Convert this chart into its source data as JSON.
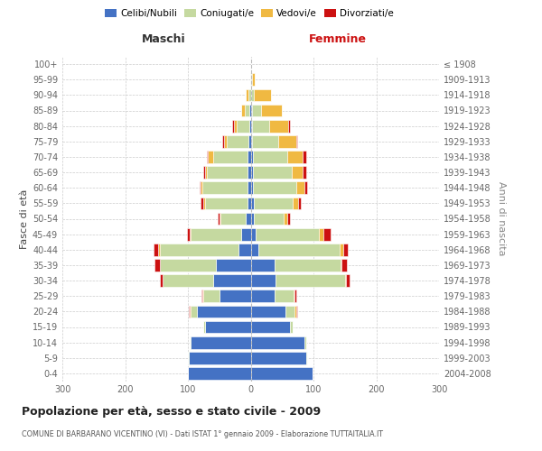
{
  "age_groups": [
    "0-4",
    "5-9",
    "10-14",
    "15-19",
    "20-24",
    "25-29",
    "30-34",
    "35-39",
    "40-44",
    "45-49",
    "50-54",
    "55-59",
    "60-64",
    "65-69",
    "70-74",
    "75-79",
    "80-84",
    "85-89",
    "90-94",
    "95-99",
    "100+"
  ],
  "birth_years": [
    "2004-2008",
    "1999-2003",
    "1994-1998",
    "1989-1993",
    "1984-1988",
    "1979-1983",
    "1974-1978",
    "1969-1973",
    "1964-1968",
    "1959-1963",
    "1954-1958",
    "1949-1953",
    "1944-1948",
    "1939-1943",
    "1934-1938",
    "1929-1933",
    "1924-1928",
    "1919-1923",
    "1914-1918",
    "1909-1913",
    "≤ 1908"
  ],
  "maschi": {
    "celibi": [
      100,
      98,
      95,
      72,
      85,
      50,
      60,
      55,
      20,
      15,
      8,
      5,
      5,
      5,
      5,
      3,
      2,
      2,
      0,
      0,
      0
    ],
    "coniugati": [
      0,
      2,
      2,
      3,
      10,
      25,
      80,
      90,
      125,
      80,
      40,
      68,
      72,
      65,
      55,
      35,
      20,
      8,
      3,
      1,
      0
    ],
    "vedovi": [
      0,
      0,
      0,
      0,
      2,
      2,
      0,
      0,
      2,
      2,
      2,
      2,
      3,
      3,
      8,
      5,
      5,
      5,
      5,
      0,
      0
    ],
    "divorziati": [
      0,
      0,
      0,
      0,
      2,
      2,
      5,
      8,
      8,
      5,
      2,
      5,
      2,
      2,
      2,
      2,
      2,
      0,
      0,
      0,
      0
    ]
  },
  "femmine": {
    "nubili": [
      98,
      88,
      85,
      62,
      55,
      38,
      40,
      38,
      12,
      8,
      5,
      5,
      3,
      3,
      3,
      2,
      2,
      2,
      0,
      0,
      0
    ],
    "coniugate": [
      0,
      2,
      3,
      5,
      15,
      30,
      110,
      105,
      130,
      100,
      48,
      62,
      70,
      62,
      55,
      42,
      28,
      15,
      5,
      2,
      0
    ],
    "vedove": [
      0,
      0,
      0,
      0,
      2,
      2,
      2,
      2,
      5,
      8,
      5,
      8,
      12,
      18,
      25,
      28,
      30,
      32,
      28,
      5,
      0
    ],
    "divorziate": [
      0,
      0,
      0,
      0,
      2,
      2,
      5,
      8,
      8,
      12,
      5,
      5,
      5,
      5,
      5,
      2,
      2,
      0,
      0,
      0,
      0
    ]
  },
  "colors": {
    "celibi": "#4472c4",
    "coniugati": "#c5d9a0",
    "vedovi": "#f0b942",
    "divorziati": "#cc1111"
  },
  "xlim": 300,
  "title": "Popolazione per età, sesso e stato civile - 2009",
  "subtitle": "COMUNE DI BARBARANO VICENTINO (VI) - Dati ISTAT 1° gennaio 2009 - Elaborazione TUTTAITALIA.IT",
  "ylabel_left": "Fasce di età",
  "ylabel_right": "Anni di nascita",
  "label_maschi": "Maschi",
  "label_femmine": "Femmine",
  "bg_color": "#ffffff",
  "grid_color": "#cccccc",
  "tick_color": "#666666"
}
